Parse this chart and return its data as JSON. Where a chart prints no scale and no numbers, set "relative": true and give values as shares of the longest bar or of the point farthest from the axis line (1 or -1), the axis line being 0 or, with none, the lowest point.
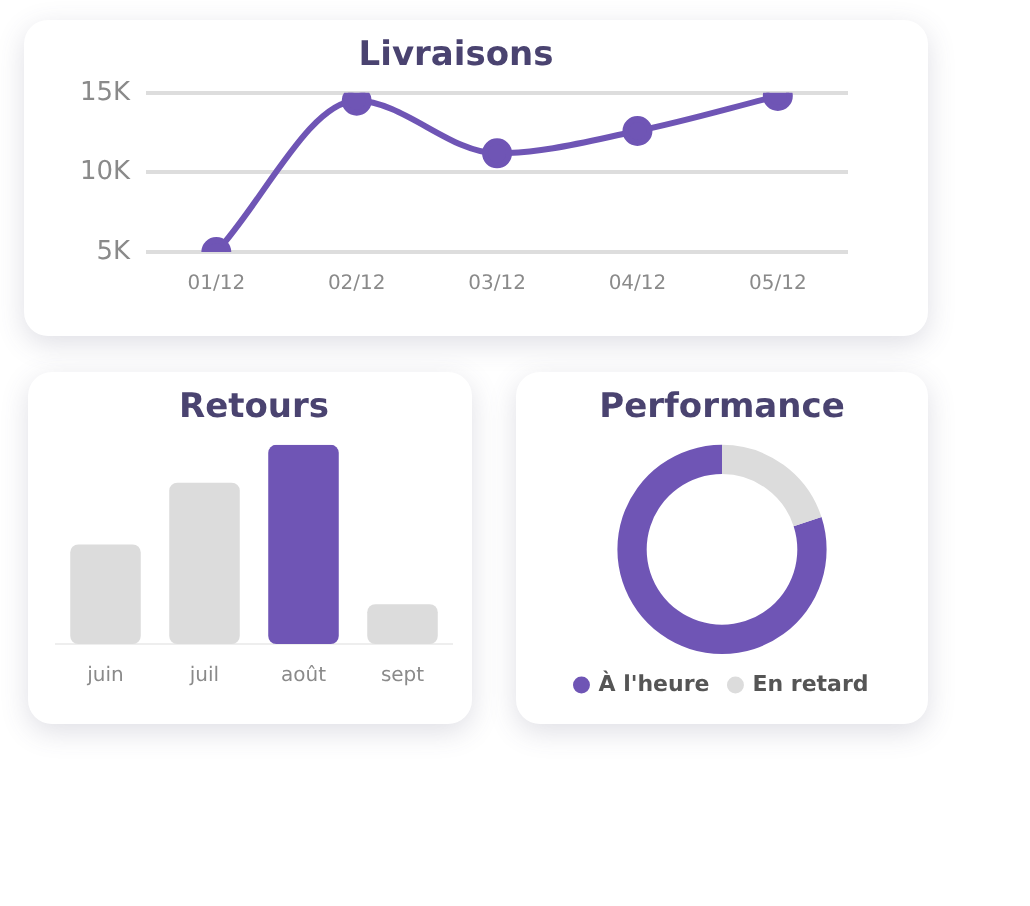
{
  "chart_data": [
    {
      "type": "line",
      "title": "Livraisons",
      "categories": [
        "01/12",
        "02/12",
        "03/12",
        "04/12",
        "05/12"
      ],
      "series": [
        {
          "color": "#6f55b5",
          "values": [
            5000,
            14500,
            11200,
            12600,
            14800
          ]
        }
      ],
      "ylim": [
        5000,
        15000
      ],
      "yticks": [
        {
          "value": 5000,
          "label": "5K"
        },
        {
          "value": 10000,
          "label": "10K"
        },
        {
          "value": 15000,
          "label": "15K"
        }
      ],
      "grid": "y",
      "marker": "circle",
      "legend": false
    },
    {
      "type": "bar",
      "title": "Retours",
      "categories": [
        "juin",
        "juil",
        "août",
        "sept"
      ],
      "relative": true,
      "values": [
        0.5,
        0.81,
        1,
        0.2
      ],
      "colors": [
        "#dcdcdc",
        "#dcdcdc",
        "#6f55b5",
        "#dcdcdc"
      ],
      "legend": false
    },
    {
      "type": "donut",
      "title": "Performance",
      "categories": [
        "À l'heure",
        "En retard"
      ],
      "values": [
        80,
        20
      ],
      "colors": [
        "#6f55b5",
        "#dcdcdc"
      ],
      "legend": "bottom"
    }
  ]
}
